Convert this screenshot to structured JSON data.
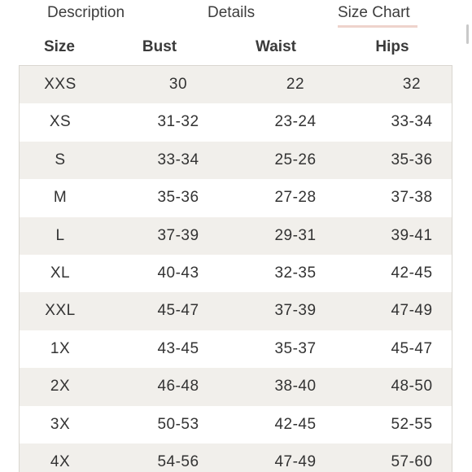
{
  "tabs": [
    {
      "label": "Description"
    },
    {
      "label": "Details"
    },
    {
      "label": "Size Chart"
    }
  ],
  "table": {
    "headers": [
      "Size",
      "Bust",
      "Waist",
      "Hips"
    ],
    "rows": [
      [
        "XXS",
        "30",
        "22",
        "32"
      ],
      [
        "XS",
        "31-32",
        "23-24",
        "33-34"
      ],
      [
        "S",
        "33-34",
        "25-26",
        "35-36"
      ],
      [
        "M",
        "35-36",
        "27-28",
        "37-38"
      ],
      [
        "L",
        "37-39",
        "29-31",
        "39-41"
      ],
      [
        "XL",
        "40-43",
        "32-35",
        "42-45"
      ],
      [
        "XXL",
        "45-47",
        "37-39",
        "47-49"
      ],
      [
        "1X",
        "43-45",
        "35-37",
        "45-47"
      ],
      [
        "2X",
        "46-48",
        "38-40",
        "48-50"
      ],
      [
        "3X",
        "50-53",
        "42-45",
        "52-55"
      ],
      [
        "4X",
        "54-56",
        "47-49",
        "57-60"
      ]
    ]
  },
  "colors": {
    "active_tab_underline": "#eed3cc",
    "striped_row": "#f1efeb",
    "text": "#333333"
  }
}
